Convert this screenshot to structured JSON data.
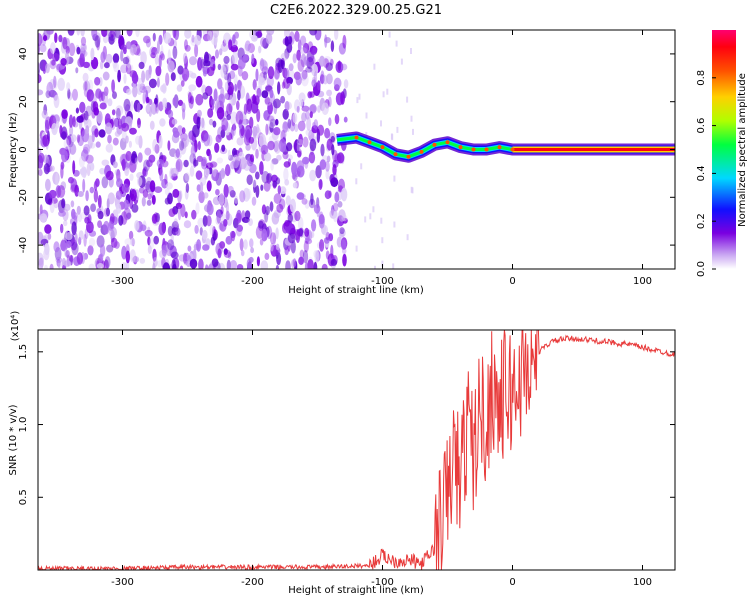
{
  "title": "C2E6.2022.329.00.25.G21",
  "chart_data": [
    {
      "type": "heatmap",
      "xlabel": "Height of straight line (km)",
      "ylabel": "Frequency (Hz)",
      "xlim": [
        -365,
        125
      ],
      "ylim": [
        -50,
        50
      ],
      "xticks": [
        -300,
        -200,
        -100,
        0,
        100
      ],
      "yticks": [
        -40,
        -20,
        0,
        20,
        40
      ],
      "noise_region_x": [
        -365,
        -128
      ],
      "signal_trace": {
        "x": [
          -135,
          -120,
          -110,
          -100,
          -90,
          -80,
          -70,
          -60,
          -50,
          -40,
          -30,
          -20,
          -10,
          0,
          10,
          125
        ],
        "y": [
          4,
          5,
          3,
          1,
          -2,
          -3,
          -1,
          2,
          3,
          1,
          0,
          0,
          1,
          0,
          0,
          0
        ]
      },
      "grid": false
    },
    {
      "type": "colorbar",
      "label": "Normalized spectral amplitude",
      "ticks": [
        "0.0",
        "0.2",
        "0.4",
        "0.6",
        "0.8"
      ],
      "range": [
        0,
        1
      ],
      "colors": [
        "#ffffff",
        "#7a00e0",
        "#0000ff",
        "#00e0ff",
        "#00ff00",
        "#ffff00",
        "#ff8000",
        "#ff0000",
        "#ff0070"
      ]
    },
    {
      "type": "line",
      "xlabel": "Height of straight line (km)",
      "ylabel": "SNR (10 * v/v)",
      "scale_label": "(x10⁴)",
      "xlim": [
        -365,
        125
      ],
      "ylim": [
        0,
        1.65
      ],
      "xticks": [
        -300,
        -200,
        -100,
        0,
        100
      ],
      "yticks": [
        "0.5",
        "1.0",
        "1.5"
      ],
      "series": [
        {
          "color": "#e83a3a",
          "x": [
            -365,
            -300,
            -250,
            -200,
            -150,
            -110,
            -100,
            -90,
            -80,
            -70,
            -60,
            -50,
            -45,
            -40,
            -35,
            -30,
            -25,
            -20,
            -15,
            -10,
            -5,
            0,
            10,
            20,
            30,
            40,
            50,
            60,
            70,
            80,
            90,
            100,
            110,
            125
          ],
          "y": [
            0.01,
            0.01,
            0.02,
            0.02,
            0.02,
            0.03,
            0.1,
            0.06,
            0.07,
            0.04,
            0.15,
            0.5,
            0.8,
            0.6,
            1.0,
            0.8,
            1.1,
            1.0,
            1.3,
            1.1,
            1.25,
            1.2,
            1.4,
            1.5,
            1.57,
            1.59,
            1.59,
            1.58,
            1.57,
            1.56,
            1.55,
            1.53,
            1.51,
            1.48
          ]
        }
      ]
    }
  ]
}
